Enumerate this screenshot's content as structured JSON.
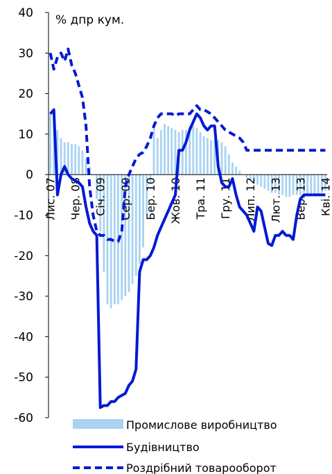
{
  "chart_data": {
    "type": "bar+line",
    "ylabel": "% дпр кум.",
    "ylim": [
      -60,
      40
    ],
    "yticks": [
      40,
      30,
      20,
      10,
      0,
      -10,
      -20,
      -30,
      -40,
      -50,
      -60
    ],
    "x_tick_labels": [
      "Лис. 07",
      "Чер. 08",
      "Січ. 09",
      "Сер. 09",
      "Бер. 10",
      "Жов. 10",
      "Тра. 11",
      "Гру. 11",
      "Лип. 12",
      "Лют. 13",
      "Вер. 13",
      "Кві. 14"
    ],
    "x_tick_index": [
      0,
      7,
      14,
      21,
      28,
      35,
      42,
      49,
      56,
      63,
      70,
      77
    ],
    "legend": [
      "Промислове виробництво",
      "Будівництво",
      "Роздрібний товарооборот"
    ],
    "colors": {
      "industry": "#a9d3f2",
      "construction": "#0019d6",
      "retail": "#0019d6"
    },
    "series": [
      {
        "name": "Промислове виробництво",
        "type": "bar",
        "values": [
          15,
          14,
          11,
          9,
          8,
          8,
          7.5,
          7.5,
          7,
          6,
          4,
          2,
          0,
          -6,
          -14,
          -24,
          -32,
          -33,
          -32,
          -32,
          -31,
          -30,
          -29,
          -27,
          -25,
          -22,
          -18,
          -10,
          -2,
          12,
          9,
          11,
          12.5,
          12,
          11.5,
          11,
          10.5,
          11,
          11,
          12,
          12,
          11.5,
          10.5,
          9.5,
          9,
          8.5,
          8.5,
          8.5,
          8,
          7,
          5,
          3,
          2,
          1,
          0,
          -1,
          -1.5,
          -2,
          -2.5,
          -3,
          -3.5,
          -4,
          -4.5,
          -4.5,
          -5,
          -5,
          -5.5,
          -5.5,
          -5,
          -5,
          -5,
          -4.5,
          -5,
          -5,
          -5,
          -5,
          -4.5,
          -4
        ]
      },
      {
        "name": "Будівництво",
        "type": "line",
        "values": [
          15,
          16,
          -5,
          0,
          2,
          0,
          -1,
          -1.5,
          -2,
          -3,
          -8,
          -12,
          -14,
          -15,
          -57.5,
          -57,
          -57,
          -56,
          -56,
          -55,
          -54.5,
          -54,
          -52,
          -51,
          -48,
          -24,
          -21,
          -21,
          -20,
          -18,
          -15,
          -13,
          -11,
          -9,
          -7,
          -5,
          6,
          6,
          8,
          11,
          13,
          15,
          14,
          12,
          11,
          12,
          12,
          2,
          -2,
          -3,
          -3,
          -1,
          -5,
          -8,
          -9,
          -10,
          -12,
          -14,
          -8,
          -9,
          -13,
          -17,
          -17.5,
          -15,
          -15,
          -14,
          -15,
          -15,
          -16,
          -10,
          -6,
          -5,
          -5,
          -5,
          -5,
          -5,
          -5,
          -5
        ]
      },
      {
        "name": "Роздрібний товарооборот",
        "type": "line",
        "style": "dashed",
        "values": [
          30,
          26,
          29,
          30,
          28,
          31,
          27,
          25,
          22,
          19,
          12,
          -3,
          -10,
          -14,
          -15,
          -15,
          -16,
          -16,
          -16.5,
          -16.5,
          -14,
          -3,
          0,
          2,
          4,
          5,
          5.5,
          7,
          9,
          12,
          14,
          15,
          15,
          15,
          15,
          14.5,
          15,
          15,
          15,
          15,
          16,
          17,
          16,
          16,
          15.5,
          15,
          14,
          13,
          12,
          11,
          10.5,
          10,
          9.5,
          9,
          8,
          6,
          6,
          6,
          6,
          6,
          6,
          6,
          6,
          6,
          6,
          6,
          6,
          6,
          6,
          6,
          6,
          6,
          6,
          6,
          6,
          6,
          6,
          6
        ]
      }
    ]
  }
}
